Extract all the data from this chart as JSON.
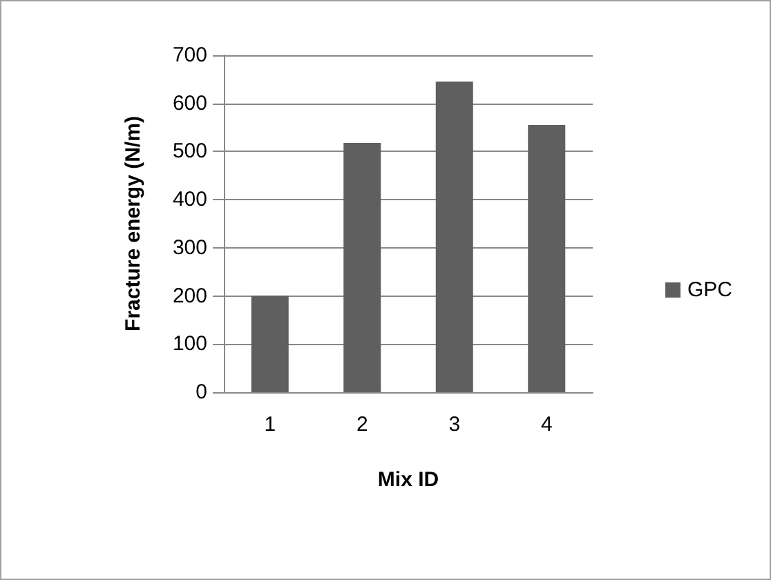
{
  "chart_data": {
    "type": "bar",
    "xlabel": "Mix ID",
    "ylabel": "Fracture energy (N/m)",
    "categories": [
      "1",
      "2",
      "3",
      "4"
    ],
    "series": [
      {
        "name": "GPC",
        "color": "#5f5f5f",
        "values": [
          200,
          518,
          645,
          555
        ]
      }
    ],
    "ylim": [
      0,
      700
    ],
    "yticks": [
      0,
      100,
      200,
      300,
      400,
      500,
      600,
      700
    ],
    "grid": "y",
    "legend": "right"
  }
}
